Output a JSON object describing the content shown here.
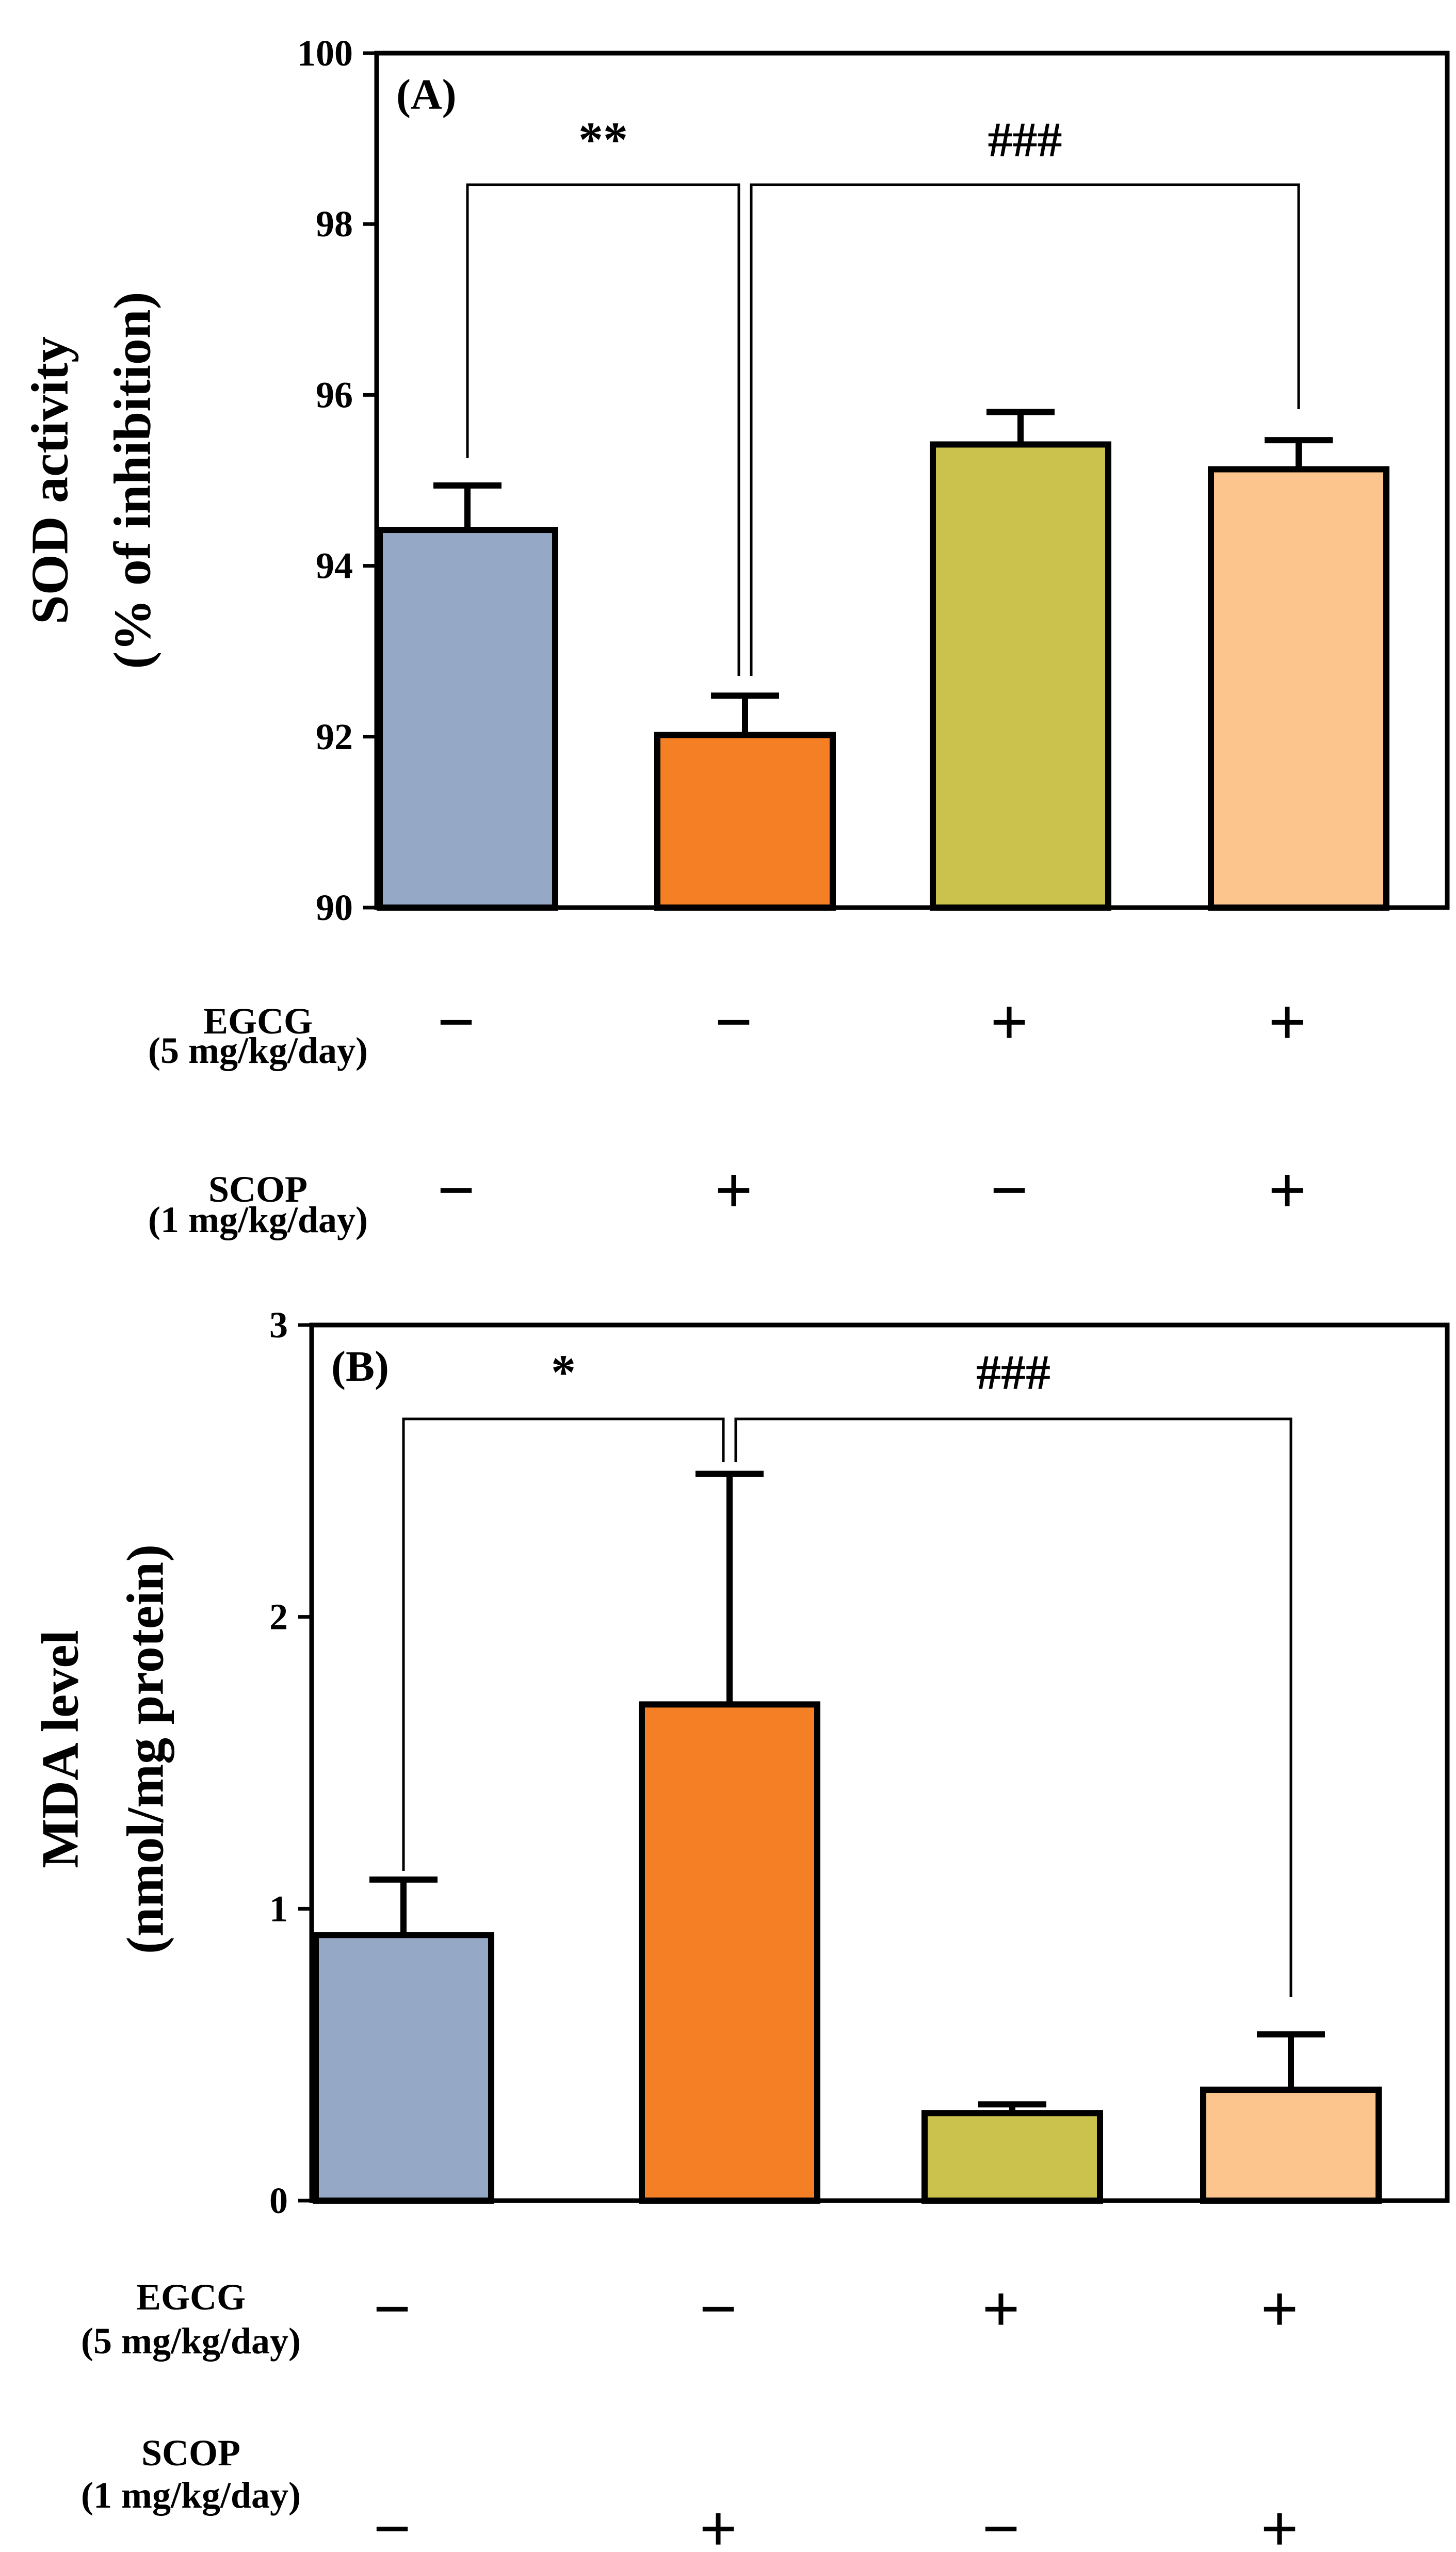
{
  "chart_data": [
    {
      "type": "bar",
      "panel_label": "(A)",
      "ylabel": [
        "SOD activity",
        "(% of inhibition)"
      ],
      "ylim": [
        90,
        100
      ],
      "yticks": [
        90,
        92,
        94,
        96,
        98,
        100
      ],
      "groups": [
        {
          "value": 94.42,
          "error": 0.52,
          "color": "#95a9c6"
        },
        {
          "value": 92.02,
          "error": 0.46,
          "color": "#f47f24"
        },
        {
          "value": 95.42,
          "error": 0.38,
          "color": "#cbc24d"
        },
        {
          "value": 95.13,
          "error": 0.34,
          "color": "#fcc58e"
        }
      ],
      "significance": [
        {
          "from": 0,
          "to": 1,
          "label": "**"
        },
        {
          "from": 1,
          "to": 3,
          "label": "###"
        }
      ],
      "conditions": [
        {
          "label": [
            "EGCG",
            "(5 mg/kg/day)"
          ],
          "signs": [
            "−",
            "−",
            "+",
            "+"
          ]
        },
        {
          "label": [
            "SCOP",
            "(1 mg/kg/day)"
          ],
          "signs": [
            "−",
            "+",
            "−",
            "+"
          ]
        }
      ]
    },
    {
      "type": "bar",
      "panel_label": "(B)",
      "ylabel": [
        "MDA level",
        "(nmol/mg protein)"
      ],
      "ylim": [
        0,
        3
      ],
      "yticks": [
        0,
        1,
        2,
        3
      ],
      "groups": [
        {
          "value": 0.91,
          "error": 0.19,
          "color": "#95a9c6"
        },
        {
          "value": 1.7,
          "error": 0.79,
          "color": "#f47f24"
        },
        {
          "value": 0.3,
          "error": 0.03,
          "color": "#cbc24d"
        },
        {
          "value": 0.38,
          "error": 0.19,
          "color": "#fcc58e"
        }
      ],
      "significance": [
        {
          "from": 0,
          "to": 1,
          "label": "*"
        },
        {
          "from": 1,
          "to": 3,
          "label": "###"
        }
      ],
      "conditions": [
        {
          "label": [
            "EGCG",
            "(5 mg/kg/day)"
          ],
          "signs": [
            "−",
            "−",
            "+",
            "+"
          ]
        },
        {
          "label": [
            "SCOP",
            "(1 mg/kg/day)"
          ],
          "signs": [
            "−",
            "+",
            "−",
            "+"
          ]
        }
      ]
    }
  ]
}
